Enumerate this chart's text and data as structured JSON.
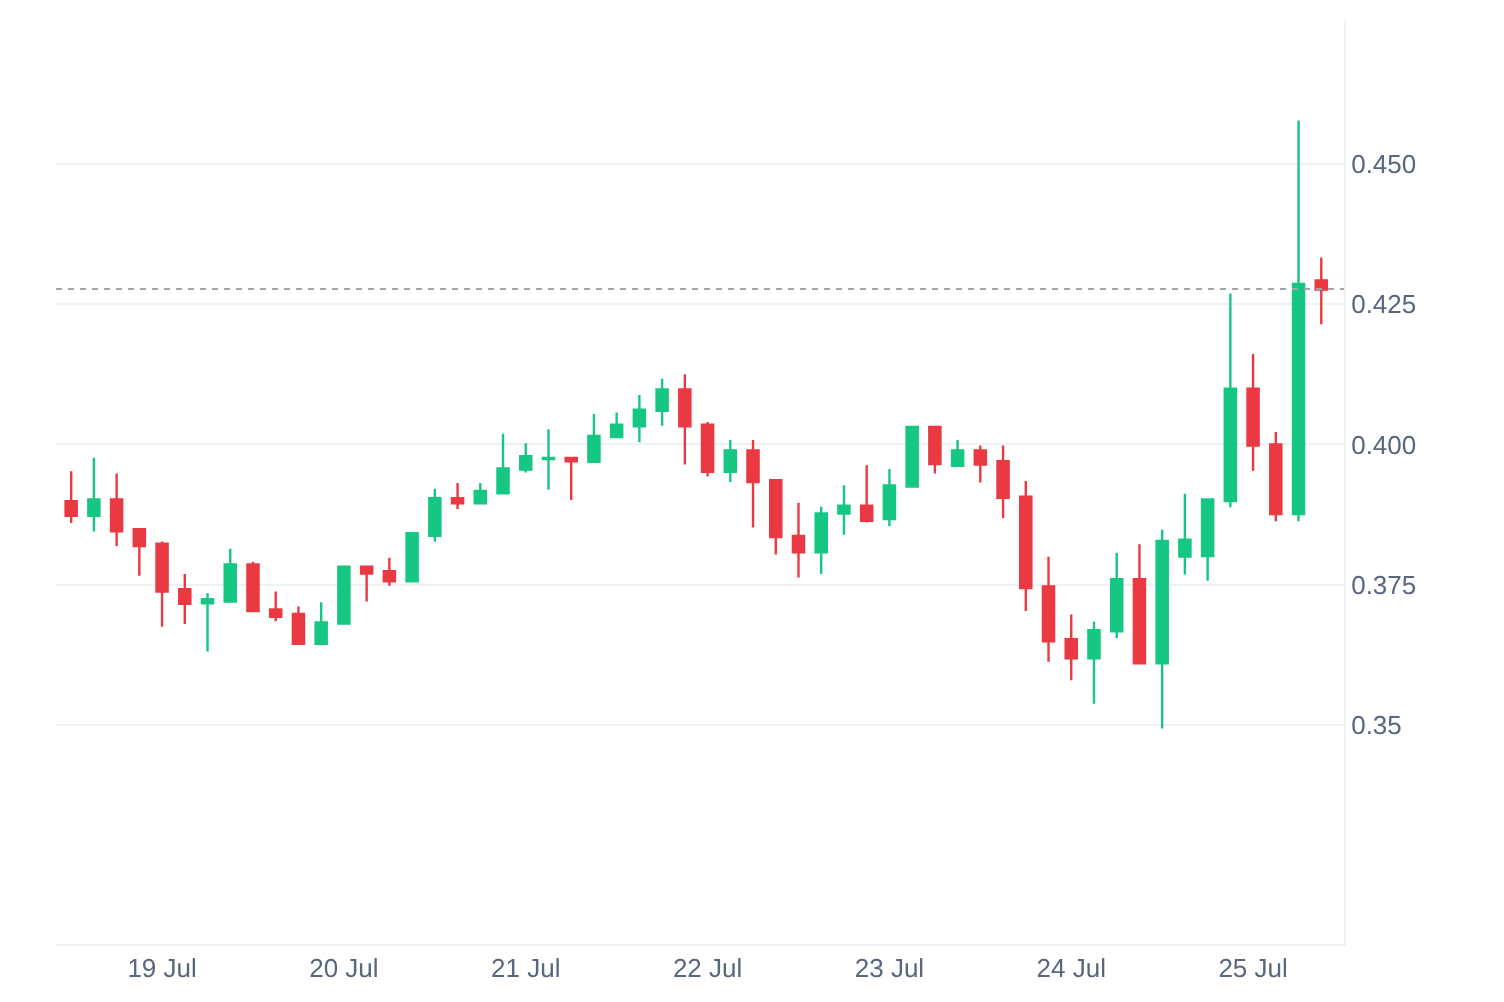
{
  "chart_data": {
    "type": "candlestick",
    "x": [
      "--07-18T12:00",
      "--07-18T15:00",
      "--07-18T18:00",
      "--07-18T21:00",
      "--07-19T00:00",
      "--07-19T03:00",
      "--07-19T06:00",
      "--07-19T09:00",
      "--07-19T12:00",
      "--07-19T15:00",
      "--07-19T18:00",
      "--07-19T21:00",
      "--07-20T00:00",
      "--07-20T03:00",
      "--07-20T06:00",
      "--07-20T09:00",
      "--07-20T12:00",
      "--07-20T15:00",
      "--07-20T18:00",
      "--07-20T21:00",
      "--07-21T00:00",
      "--07-21T03:00",
      "--07-21T06:00",
      "--07-21T09:00",
      "--07-21T12:00",
      "--07-21T15:00",
      "--07-21T18:00",
      "--07-21T21:00",
      "--07-22T00:00",
      "--07-22T03:00",
      "--07-22T06:00",
      "--07-22T09:00",
      "--07-22T12:00",
      "--07-22T15:00",
      "--07-22T18:00",
      "--07-22T21:00",
      "--07-23T00:00",
      "--07-23T03:00",
      "--07-23T06:00",
      "--07-23T09:00",
      "--07-23T12:00",
      "--07-23T15:00",
      "--07-23T18:00",
      "--07-23T21:00",
      "--07-24T00:00",
      "--07-24T03:00",
      "--07-24T06:00",
      "--07-24T09:00",
      "--07-24T12:00",
      "--07-24T15:00",
      "--07-24T18:00",
      "--07-24T21:00",
      "--07-25T00:00",
      "--07-25T03:00",
      "--07-25T06:00",
      "--07-25T09:00"
    ],
    "ohlc": [
      [
        0.3899,
        0.3952,
        0.386,
        0.3873
      ],
      [
        0.3873,
        0.3976,
        0.3845,
        0.3902
      ],
      [
        0.3902,
        0.3948,
        0.3819,
        0.3845
      ],
      [
        0.3849,
        0.3851,
        0.3766,
        0.3819
      ],
      [
        0.3823,
        0.3827,
        0.3675,
        0.3738
      ],
      [
        0.3742,
        0.3769,
        0.368,
        0.3716
      ],
      [
        0.3717,
        0.3735,
        0.3631,
        0.3724
      ],
      [
        0.372,
        0.3814,
        0.372,
        0.3786
      ],
      [
        0.3786,
        0.3791,
        0.3703,
        0.3703
      ],
      [
        0.3706,
        0.3738,
        0.3685,
        0.3693
      ],
      [
        0.3698,
        0.3711,
        0.3645,
        0.3645
      ],
      [
        0.3645,
        0.3719,
        0.3645,
        0.3683
      ],
      [
        0.3681,
        0.3782,
        0.3681,
        0.3782
      ],
      [
        0.3782,
        0.3782,
        0.372,
        0.377
      ],
      [
        0.3774,
        0.3798,
        0.3748,
        0.3756
      ],
      [
        0.3756,
        0.3842,
        0.3756,
        0.3842
      ],
      [
        0.3837,
        0.3921,
        0.3827,
        0.3904
      ],
      [
        0.3904,
        0.3931,
        0.3885,
        0.3895
      ],
      [
        0.3895,
        0.3931,
        0.3893,
        0.3917
      ],
      [
        0.3913,
        0.4019,
        0.3913,
        0.3957
      ],
      [
        0.3955,
        0.4002,
        0.395,
        0.3979
      ],
      [
        0.3974,
        0.4027,
        0.3919,
        0.3976
      ],
      [
        0.3976,
        0.3976,
        0.3901,
        0.397
      ],
      [
        0.3969,
        0.4054,
        0.3969,
        0.4015
      ],
      [
        0.4013,
        0.4057,
        0.4013,
        0.4035
      ],
      [
        0.4032,
        0.4088,
        0.4004,
        0.4062
      ],
      [
        0.406,
        0.4117,
        0.4033,
        0.4098
      ],
      [
        0.4098,
        0.4125,
        0.3964,
        0.4032
      ],
      [
        0.4035,
        0.404,
        0.3943,
        0.3951
      ],
      [
        0.3951,
        0.4008,
        0.3933,
        0.3989
      ],
      [
        0.3989,
        0.4008,
        0.3852,
        0.3933
      ],
      [
        0.3936,
        0.3936,
        0.3804,
        0.3835
      ],
      [
        0.3837,
        0.3896,
        0.3763,
        0.3808
      ],
      [
        0.3808,
        0.3889,
        0.3769,
        0.3877
      ],
      [
        0.3877,
        0.3927,
        0.3839,
        0.3891
      ],
      [
        0.3891,
        0.3963,
        0.3861,
        0.3864
      ],
      [
        0.3867,
        0.3956,
        0.3854,
        0.3927
      ],
      [
        0.3925,
        0.4031,
        0.3925,
        0.4031
      ],
      [
        0.4031,
        0.4031,
        0.3948,
        0.3965
      ],
      [
        0.3962,
        0.4008,
        0.3962,
        0.3989
      ],
      [
        0.3989,
        0.3998,
        0.3932,
        0.3964
      ],
      [
        0.397,
        0.3998,
        0.3869,
        0.3905
      ],
      [
        0.3907,
        0.3935,
        0.3703,
        0.3744
      ],
      [
        0.3747,
        0.38,
        0.3613,
        0.3649
      ],
      [
        0.3653,
        0.3697,
        0.358,
        0.3619
      ],
      [
        0.3619,
        0.3684,
        0.3538,
        0.3669
      ],
      [
        0.3667,
        0.3807,
        0.3655,
        0.376
      ],
      [
        0.376,
        0.3822,
        0.361,
        0.361
      ],
      [
        0.361,
        0.3848,
        0.3494,
        0.3828
      ],
      [
        0.38,
        0.3912,
        0.3768,
        0.383
      ],
      [
        0.3801,
        0.3902,
        0.3757,
        0.3902
      ],
      [
        0.3899,
        0.4269,
        0.3888,
        0.4099
      ],
      [
        0.4099,
        0.4161,
        0.3953,
        0.3998
      ],
      [
        0.4,
        0.4022,
        0.3863,
        0.3876
      ],
      [
        0.3876,
        0.4577,
        0.3863,
        0.4286
      ],
      [
        0.4292,
        0.4333,
        0.4214,
        0.4276
      ]
    ],
    "colors": [
      "#ea3943",
      "#16c784",
      "#ea3943",
      "#ea3943",
      "#ea3943",
      "#ea3943",
      "#16c784",
      "#16c784",
      "#ea3943",
      "#ea3943",
      "#ea3943",
      "#16c784",
      "#16c784",
      "#ea3943",
      "#ea3943",
      "#16c784",
      "#16c784",
      "#ea3943",
      "#16c784",
      "#16c784",
      "#16c784",
      "#16c784",
      "#ea3943",
      "#16c784",
      "#16c784",
      "#16c784",
      "#16c784",
      "#ea3943",
      "#ea3943",
      "#16c784",
      "#ea3943",
      "#ea3943",
      "#ea3943",
      "#16c784",
      "#16c784",
      "#ea3943",
      "#16c784",
      "#16c784",
      "#ea3943",
      "#16c784",
      "#ea3943",
      "#ea3943",
      "#ea3943",
      "#ea3943",
      "#ea3943",
      "#16c784",
      "#16c784",
      "#ea3943",
      "#16c784",
      "#16c784",
      "#16c784",
      "#16c784",
      "#ea3943",
      "#ea3943",
      "#16c784",
      "#ea3943"
    ],
    "xlim": [
      "--07-18T10:00",
      "--07-25T12:00"
    ],
    "xticks": [
      {
        "value": "--07-19",
        "label": "19 Jul"
      },
      {
        "value": "--07-20",
        "label": "20 Jul"
      },
      {
        "value": "--07-21",
        "label": "21 Jul"
      },
      {
        "value": "--07-22",
        "label": "22 Jul"
      },
      {
        "value": "--07-23",
        "label": "23 Jul"
      },
      {
        "value": "--07-24",
        "label": "24 Jul"
      },
      {
        "value": "--07-25",
        "label": "25 Jul"
      }
    ],
    "ylim": [
      0.311,
      0.4756
    ],
    "yticks": [
      0.35,
      0.375,
      {
        "value": 0.4,
        "label": "0.400"
      },
      0.425,
      {
        "value": 0.45,
        "label": "0.450"
      }
    ],
    "ref_lines": [
      {
        "axis": "y",
        "value": 0.4277,
        "label": null,
        "color": "#a0a4ad",
        "line_style": "dotted"
      }
    ],
    "grid": "y"
  }
}
